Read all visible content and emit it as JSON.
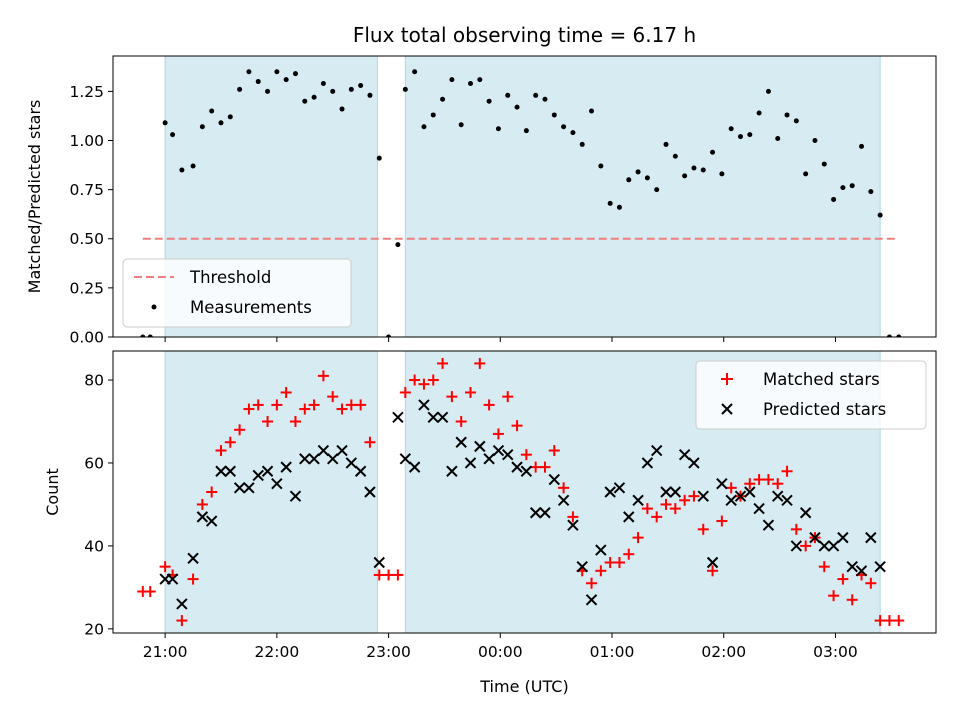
{
  "chart_data": [
    {
      "type": "scatter",
      "title": "Flux total observing time = 6.17 h",
      "xlabel": "",
      "ylabel": "Matched/Predicted stars",
      "ylim": [
        0,
        1.43
      ],
      "yticks": [
        "0.00",
        "0.25",
        "0.50",
        "0.75",
        "1.00",
        "1.25"
      ],
      "xlim": [
        "20:32",
        "03:54"
      ],
      "observing_windows": [
        [
          "21:00",
          "22:54"
        ],
        [
          "23:09",
          "03:24"
        ]
      ],
      "threshold": {
        "label": "Threshold",
        "value": 0.5,
        "from": "20:48",
        "to": "03:32",
        "color": "#f08080"
      },
      "legend": {
        "position": "lower-left",
        "entries": [
          "Threshold",
          "Measurements"
        ]
      },
      "series": [
        {
          "name": "Measurements",
          "color": "#000000",
          "x": [
            "20:48",
            "20:52",
            "21:00",
            "21:04",
            "21:09",
            "21:15",
            "21:20",
            "21:25",
            "21:30",
            "21:35",
            "21:40",
            "21:45",
            "21:50",
            "21:55",
            "22:00",
            "22:05",
            "22:10",
            "22:15",
            "22:20",
            "22:25",
            "22:30",
            "22:35",
            "22:40",
            "22:45",
            "22:50",
            "22:55",
            "23:00",
            "23:05",
            "23:09",
            "23:14",
            "23:19",
            "23:24",
            "23:29",
            "23:34",
            "23:39",
            "23:44",
            "23:49",
            "23:54",
            "23:59",
            "00:04",
            "00:09",
            "00:14",
            "00:19",
            "00:24",
            "00:29",
            "00:34",
            "00:39",
            "00:44",
            "00:49",
            "00:54",
            "00:59",
            "01:04",
            "01:09",
            "01:14",
            "01:19",
            "01:24",
            "01:29",
            "01:34",
            "01:39",
            "01:44",
            "01:49",
            "01:54",
            "01:59",
            "02:04",
            "02:09",
            "02:14",
            "02:19",
            "02:24",
            "02:29",
            "02:34",
            "02:39",
            "02:44",
            "02:49",
            "02:54",
            "02:59",
            "03:04",
            "03:09",
            "03:14",
            "03:19",
            "03:24",
            "03:29",
            "03:34"
          ],
          "y": [
            0.0,
            0.0,
            1.09,
            1.03,
            0.85,
            0.87,
            1.07,
            1.15,
            1.09,
            1.12,
            1.26,
            1.35,
            1.3,
            1.25,
            1.35,
            1.31,
            1.34,
            1.2,
            1.22,
            1.29,
            1.25,
            1.16,
            1.26,
            1.28,
            1.23,
            0.91,
            0.0,
            0.47,
            1.26,
            1.35,
            1.07,
            1.13,
            1.21,
            1.31,
            1.08,
            1.29,
            1.31,
            1.2,
            1.06,
            1.23,
            1.17,
            1.05,
            1.23,
            1.21,
            1.13,
            1.07,
            1.04,
            0.98,
            1.15,
            0.87,
            0.68,
            0.66,
            0.8,
            0.84,
            0.81,
            0.75,
            0.98,
            0.92,
            0.82,
            0.86,
            0.85,
            0.94,
            0.83,
            1.06,
            1.02,
            1.03,
            1.14,
            1.25,
            1.01,
            1.13,
            1.1,
            0.83,
            1.0,
            0.88,
            0.7,
            0.76,
            0.77,
            0.97,
            0.74,
            0.62,
            0.0,
            0.0
          ]
        }
      ]
    },
    {
      "type": "scatter",
      "title": "",
      "xlabel": "Time (UTC)",
      "ylabel": "Count",
      "ylim": [
        19,
        87
      ],
      "yticks": [
        "20",
        "40",
        "60",
        "80"
      ],
      "xticks": [
        "21:00",
        "22:00",
        "23:00",
        "00:00",
        "01:00",
        "02:00",
        "03:00"
      ],
      "xlim": [
        "20:32",
        "03:54"
      ],
      "observing_windows": [
        [
          "21:00",
          "22:54"
        ],
        [
          "23:09",
          "03:24"
        ]
      ],
      "legend": {
        "position": "upper-right",
        "entries": [
          "Matched stars",
          "Predicted stars"
        ]
      },
      "series": [
        {
          "name": "Matched stars",
          "marker": "+",
          "color": "#ff0000",
          "x": [
            "20:48",
            "20:52",
            "21:00",
            "21:04",
            "21:09",
            "21:15",
            "21:20",
            "21:25",
            "21:30",
            "21:35",
            "21:40",
            "21:45",
            "21:50",
            "21:55",
            "22:00",
            "22:05",
            "22:10",
            "22:15",
            "22:20",
            "22:25",
            "22:30",
            "22:35",
            "22:40",
            "22:45",
            "22:50",
            "22:55",
            "23:00",
            "23:05",
            "23:09",
            "23:14",
            "23:19",
            "23:24",
            "23:29",
            "23:34",
            "23:39",
            "23:44",
            "23:49",
            "23:54",
            "23:59",
            "00:04",
            "00:09",
            "00:14",
            "00:19",
            "00:24",
            "00:29",
            "00:34",
            "00:39",
            "00:44",
            "00:49",
            "00:54",
            "00:59",
            "01:04",
            "01:09",
            "01:14",
            "01:19",
            "01:24",
            "01:29",
            "01:34",
            "01:39",
            "01:44",
            "01:49",
            "01:54",
            "01:59",
            "02:04",
            "02:09",
            "02:14",
            "02:19",
            "02:24",
            "02:29",
            "02:34",
            "02:39",
            "02:44",
            "02:49",
            "02:54",
            "02:59",
            "03:04",
            "03:09",
            "03:14",
            "03:19",
            "03:24",
            "03:29",
            "03:34"
          ],
          "y": [
            29,
            29,
            35,
            33,
            22,
            32,
            50,
            53,
            63,
            65,
            68,
            73,
            74,
            70,
            74,
            77,
            70,
            73,
            74,
            81,
            76,
            73,
            74,
            74,
            65,
            33,
            33,
            33,
            77,
            80,
            79,
            80,
            84,
            76,
            70,
            77,
            84,
            74,
            67,
            76,
            69,
            62,
            59,
            59,
            63,
            54,
            47,
            34,
            31,
            34,
            36,
            36,
            38,
            42,
            49,
            47,
            50,
            49,
            51,
            52,
            44,
            34,
            46,
            54,
            52,
            55,
            56,
            56,
            55,
            58,
            44,
            40,
            42,
            35,
            28,
            32,
            27,
            33,
            31,
            22,
            22,
            22
          ]
        },
        {
          "name": "Predicted stars",
          "marker": "x",
          "color": "#000000",
          "x": [
            "21:00",
            "21:04",
            "21:09",
            "21:15",
            "21:20",
            "21:25",
            "21:30",
            "21:35",
            "21:40",
            "21:45",
            "21:50",
            "21:55",
            "22:00",
            "22:05",
            "22:10",
            "22:15",
            "22:20",
            "22:25",
            "22:30",
            "22:35",
            "22:40",
            "22:45",
            "22:50",
            "22:55",
            "23:05",
            "23:09",
            "23:14",
            "23:19",
            "23:24",
            "23:29",
            "23:34",
            "23:39",
            "23:44",
            "23:49",
            "23:54",
            "23:59",
            "00:04",
            "00:09",
            "00:14",
            "00:19",
            "00:24",
            "00:29",
            "00:34",
            "00:39",
            "00:44",
            "00:49",
            "00:54",
            "00:59",
            "01:04",
            "01:09",
            "01:14",
            "01:19",
            "01:24",
            "01:29",
            "01:34",
            "01:39",
            "01:44",
            "01:49",
            "01:54",
            "01:59",
            "02:04",
            "02:09",
            "02:14",
            "02:19",
            "02:24",
            "02:29",
            "02:34",
            "02:39",
            "02:44",
            "02:49",
            "02:54",
            "02:59",
            "03:04",
            "03:09",
            "03:14",
            "03:19",
            "03:24"
          ],
          "y": [
            32,
            32,
            26,
            37,
            47,
            46,
            58,
            58,
            54,
            54,
            57,
            58,
            55,
            59,
            52,
            61,
            61,
            63,
            61,
            63,
            60,
            58,
            53,
            36,
            71,
            61,
            59,
            74,
            71,
            71,
            58,
            65,
            60,
            64,
            61,
            63,
            62,
            59,
            58,
            48,
            48,
            56,
            51,
            45,
            35,
            27,
            39,
            53,
            54,
            47,
            51,
            60,
            63,
            53,
            53,
            62,
            60,
            52,
            36,
            55,
            51,
            52,
            53,
            49,
            45,
            52,
            51,
            40,
            48,
            42,
            40,
            40,
            42,
            35,
            34,
            42,
            35
          ]
        }
      ]
    }
  ]
}
